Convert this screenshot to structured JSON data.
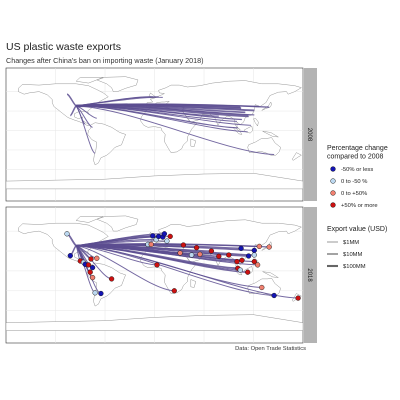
{
  "title": "US plastic waste exports",
  "subtitle": "Changes after China's ban on importing waste (January 2018)",
  "caption": "Data: Open Trade Statistics",
  "colors": {
    "flow_line": "#5c4d91",
    "panel_border": "#333333",
    "strip_bg": "#b3b3b3",
    "land_outline": "#8a8a8a",
    "grid": "#e6e6e6"
  },
  "chart_data": {
    "type": "flow-map",
    "facets": [
      "2008",
      "2018"
    ],
    "color_legend": {
      "title": [
        "Percentage change",
        "compared to 2008"
      ],
      "items": [
        {
          "label": "-50% or less",
          "color": "#1414b4"
        },
        {
          "label": "0 to -50 %",
          "color": "#bcd8f0"
        },
        {
          "label": "0 to +50%",
          "color": "#f08070"
        },
        {
          "label": "+50% or more",
          "color": "#cc1111"
        }
      ]
    },
    "size_legend": {
      "title": "Export value (USD)",
      "items": [
        {
          "label": "$1MM",
          "width": 0.4
        },
        {
          "label": "$10MM",
          "width": 1.0
        },
        {
          "label": "$100MM",
          "width": 2.0
        }
      ]
    },
    "origin": {
      "name": "United States",
      "lon": -95,
      "lat": 38
    },
    "flows_2008": [
      {
        "lon": 105,
        "lat": 34,
        "w": 2.0
      },
      {
        "lon": 114,
        "lat": 22.5,
        "w": 2.2
      },
      {
        "lon": 121,
        "lat": 31,
        "w": 1.4
      },
      {
        "lon": 104,
        "lat": 36,
        "w": 1.0
      },
      {
        "lon": 110,
        "lat": 28,
        "w": 1.2
      },
      {
        "lon": 127,
        "lat": 37,
        "w": 0.8
      },
      {
        "lon": 139,
        "lat": 36,
        "w": 0.8
      },
      {
        "lon": 121,
        "lat": 24,
        "w": 0.6
      },
      {
        "lon": 106,
        "lat": 17,
        "w": 0.7
      },
      {
        "lon": 101,
        "lat": 4,
        "w": 0.7
      },
      {
        "lon": 100,
        "lat": 14,
        "w": 0.5
      },
      {
        "lon": 117,
        "lat": 8,
        "w": 0.4
      },
      {
        "lon": 78,
        "lat": 22,
        "w": 0.6
      },
      {
        "lon": 113,
        "lat": -2,
        "w": 0.4
      },
      {
        "lon": -102,
        "lat": 23,
        "w": 1.0
      },
      {
        "lon": -106,
        "lat": 56,
        "w": 1.0
      },
      {
        "lon": 10,
        "lat": 51,
        "w": 0.4
      },
      {
        "lon": 5,
        "lat": 52,
        "w": 0.4
      },
      {
        "lon": -2,
        "lat": 52,
        "w": 0.4
      },
      {
        "lon": -70,
        "lat": 19,
        "w": 0.4
      },
      {
        "lon": -84,
        "lat": 10,
        "w": 0.4
      },
      {
        "lon": -75,
        "lat": 5,
        "w": 0.4
      },
      {
        "lon": -72,
        "lat": -35,
        "w": 0.4
      },
      {
        "lon": 145,
        "lat": -37,
        "w": 0.4
      }
    ],
    "flows_2018": [
      {
        "lon": 114,
        "lat": 22.5,
        "w": 1.4,
        "change": "-50% or less"
      },
      {
        "lon": 105,
        "lat": 34,
        "w": 1.0,
        "change": "-50% or less"
      },
      {
        "lon": 121,
        "lat": 31,
        "w": 0.8,
        "change": "-50% or less"
      },
      {
        "lon": 106,
        "lat": 16,
        "w": 1.2,
        "change": "+50% or more"
      },
      {
        "lon": 101,
        "lat": 4,
        "w": 1.4,
        "change": "+50% or more"
      },
      {
        "lon": 100,
        "lat": 14,
        "w": 1.0,
        "change": "+50% or more"
      },
      {
        "lon": 78,
        "lat": 22,
        "w": 1.0,
        "change": "+50% or more"
      },
      {
        "lon": 113,
        "lat": -2,
        "w": 0.9,
        "change": "+50% or more"
      },
      {
        "lon": 121,
        "lat": 24,
        "w": 0.7,
        "change": "0 to -50 %"
      },
      {
        "lon": 127,
        "lat": 37,
        "w": 0.8,
        "change": "0 to +50%"
      },
      {
        "lon": 139,
        "lat": 36,
        "w": 0.7,
        "change": "0 to +50%"
      },
      {
        "lon": 121,
        "lat": 14,
        "w": 0.6,
        "change": "+50% or more"
      },
      {
        "lon": 125,
        "lat": 9,
        "w": 0.5,
        "change": "0 to +50%"
      },
      {
        "lon": 104,
        "lat": 1.3,
        "w": 0.5,
        "change": "0 to -50 %"
      },
      {
        "lon": 90,
        "lat": 24,
        "w": 0.5,
        "change": "+50% or more"
      },
      {
        "lon": 69,
        "lat": 30,
        "w": 0.5,
        "change": "+50% or more"
      },
      {
        "lon": 35,
        "lat": 39,
        "w": 0.6,
        "change": "+50% or more"
      },
      {
        "lon": 55,
        "lat": 25,
        "w": 0.5,
        "change": "0 to +50%"
      },
      {
        "lon": 145,
        "lat": -37,
        "w": 0.4,
        "change": "-50% or less"
      },
      {
        "lon": 2,
        "lat": 47,
        "w": 0.6,
        "change": "0 to -50 %"
      },
      {
        "lon": 5,
        "lat": 52,
        "w": 0.6,
        "change": "-50% or less"
      },
      {
        "lon": 10,
        "lat": 51,
        "w": 0.5,
        "change": "-50% or less"
      },
      {
        "lon": -2,
        "lat": 53,
        "w": 0.6,
        "change": "-50% or less"
      },
      {
        "lon": -8,
        "lat": 40,
        "w": 0.5,
        "change": "0 to -50 %"
      },
      {
        "lon": 19,
        "lat": 52,
        "w": 0.4,
        "change": "+50% or more"
      },
      {
        "lon": 15,
        "lat": 45,
        "w": 0.4,
        "change": "0 to -50 %"
      },
      {
        "lon": -4,
        "lat": 40,
        "w": 0.5,
        "change": "0 to +50%"
      },
      {
        "lon": 12,
        "lat": 56,
        "w": 0.4,
        "change": "-50% or less"
      },
      {
        "lon": -106,
        "lat": 56,
        "w": 1.3,
        "change": "0 to -50 %"
      },
      {
        "lon": -102,
        "lat": 23,
        "w": 1.0,
        "change": "-50% or less"
      },
      {
        "lon": -90,
        "lat": 15,
        "w": 0.5,
        "change": "+50% or more"
      },
      {
        "lon": -86,
        "lat": 13,
        "w": 0.4,
        "change": "0 to -50 %"
      },
      {
        "lon": -84,
        "lat": 10,
        "w": 0.4,
        "change": "-50% or less"
      },
      {
        "lon": -80,
        "lat": 9,
        "w": 0.4,
        "change": "+50% or more"
      },
      {
        "lon": -70,
        "lat": 19,
        "w": 0.4,
        "change": "0 to +50%"
      },
      {
        "lon": -77,
        "lat": 18,
        "w": 0.4,
        "change": "+50% or more"
      },
      {
        "lon": -75,
        "lat": 5,
        "w": 0.5,
        "change": "-50% or less"
      },
      {
        "lon": -78,
        "lat": -2,
        "w": 0.4,
        "change": "+50% or more"
      },
      {
        "lon": -75,
        "lat": -10,
        "w": 0.4,
        "change": "0 to +50%"
      },
      {
        "lon": -72,
        "lat": -33,
        "w": 0.4,
        "change": "0 to -50 %"
      },
      {
        "lon": -65,
        "lat": -34,
        "w": 0.4,
        "change": "-50% or less"
      },
      {
        "lon": -52,
        "lat": -12,
        "w": 0.4,
        "change": "+50% or more"
      },
      {
        "lon": 24,
        "lat": -30,
        "w": 0.4,
        "change": "+50% or more"
      },
      {
        "lon": 45,
        "lat": 24,
        "w": 0.4,
        "change": "0 to -50 %"
      },
      {
        "lon": 51,
        "lat": 35,
        "w": 0.4,
        "change": "+50% or more"
      },
      {
        "lon": 3,
        "lat": 9,
        "w": 0.4,
        "change": "+50% or more"
      },
      {
        "lon": 31,
        "lat": 27,
        "w": 0.4,
        "change": "0 to +50%"
      },
      {
        "lon": 174,
        "lat": -41,
        "w": 0.4,
        "change": "+50% or more"
      },
      {
        "lon": 130,
        "lat": -25,
        "w": 0.4,
        "change": "0 to +50%"
      }
    ]
  }
}
